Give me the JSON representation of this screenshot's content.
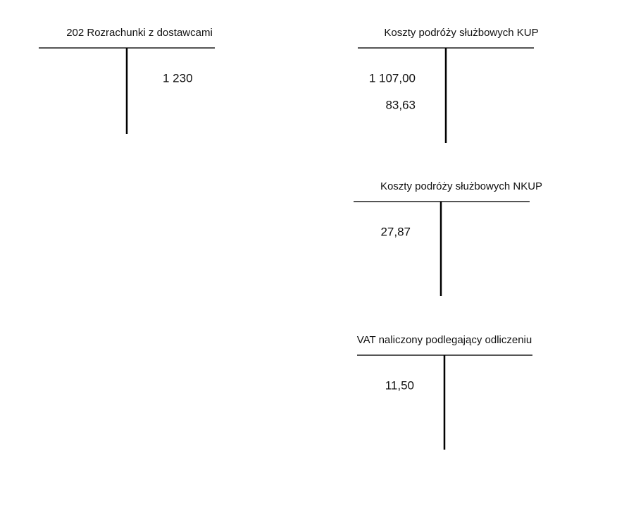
{
  "accounts": [
    {
      "title": "202 Rozrachunki z dostawcami",
      "debit": [],
      "credit": [
        "1 230"
      ]
    },
    {
      "title": "Koszty podróży służbowych KUP",
      "debit": [
        "1 107,00",
        "83,63"
      ],
      "credit": []
    },
    {
      "title": "Koszty podróży służbowych NKUP",
      "debit": [
        "27,87"
      ],
      "credit": []
    },
    {
      "title": "VAT naliczony podlegający odliczeniu",
      "debit": [
        "11,50"
      ],
      "credit": []
    }
  ]
}
